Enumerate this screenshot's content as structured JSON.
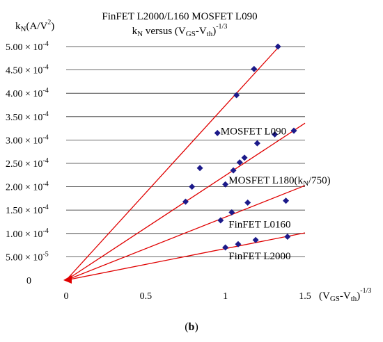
{
  "chart_data": {
    "type": "scatter",
    "title": "FinFET L2000/L160 MOSFET L090",
    "subtitle": {
      "base": "k",
      "base_sub": "N",
      "mid": " versus  (V",
      "mid_sub": "GS",
      "tail": "-V",
      "tail_sub": "th",
      "close": ")",
      "sup": "-1/3"
    },
    "ylabel": {
      "base": "k",
      "sub": "N",
      "rest": "(A/V",
      "sup": "2",
      "close": ")"
    },
    "xlabel": {
      "open": "(V",
      "sub1": "GS",
      "mid": "-V",
      "sub2": "th",
      "close": ")",
      "sup": "-1/3"
    },
    "xlim": [
      0,
      1.5
    ],
    "ylim": [
      0,
      0.0005
    ],
    "x_ticks": [
      {
        "value": 0,
        "label": "0"
      },
      {
        "value": 0.5,
        "label": "0.5"
      },
      {
        "value": 1,
        "label": "1"
      },
      {
        "value": 1.5,
        "label": "1.5"
      }
    ],
    "y_ticks": [
      {
        "value": 0,
        "label": "0"
      },
      {
        "value": 5e-05,
        "label": "5.00 × 10",
        "exp": "-5"
      },
      {
        "value": 0.0001,
        "label": "1.00 × 10",
        "exp": "-4"
      },
      {
        "value": 0.00015,
        "label": "1.50 × 10",
        "exp": "-4"
      },
      {
        "value": 0.0002,
        "label": "2.00 × 10",
        "exp": "-4"
      },
      {
        "value": 0.00025,
        "label": "2.50 × 10",
        "exp": "-4"
      },
      {
        "value": 0.0003,
        "label": "3.00 × 10",
        "exp": "-4"
      },
      {
        "value": 0.00035,
        "label": "3.50 × 10",
        "exp": "-4"
      },
      {
        "value": 0.0004,
        "label": "4.00 × 10",
        "exp": "-4"
      },
      {
        "value": 0.00045,
        "label": "4.50 × 10",
        "exp": "-4"
      },
      {
        "value": 0.0005,
        "label": "5.00 × 10",
        "exp": "-4"
      }
    ],
    "grid": true,
    "marker_color": "#1c1a8a",
    "line_color": "#e00000",
    "points": [
      {
        "x": 1.33,
        "y": 0.0005
      },
      {
        "x": 1.18,
        "y": 0.000452
      },
      {
        "x": 1.07,
        "y": 0.000396
      },
      {
        "x": 0.95,
        "y": 0.000315
      },
      {
        "x": 1.31,
        "y": 0.000312
      },
      {
        "x": 1.43,
        "y": 0.00032
      },
      {
        "x": 1.2,
        "y": 0.000293
      },
      {
        "x": 1.12,
        "y": 0.000262
      },
      {
        "x": 1.09,
        "y": 0.000252
      },
      {
        "x": 1.05,
        "y": 0.000235
      },
      {
        "x": 0.84,
        "y": 0.00024
      },
      {
        "x": 1.0,
        "y": 0.000205
      },
      {
        "x": 0.79,
        "y": 0.0002
      },
      {
        "x": 0.75,
        "y": 0.000168
      },
      {
        "x": 1.14,
        "y": 0.000166
      },
      {
        "x": 1.04,
        "y": 0.000145
      },
      {
        "x": 1.38,
        "y": 0.00017
      },
      {
        "x": 0.97,
        "y": 0.000128
      },
      {
        "x": 1.39,
        "y": 9.3e-05
      },
      {
        "x": 1.19,
        "y": 8.6e-05
      },
      {
        "x": 1.08,
        "y": 7.7e-05
      },
      {
        "x": 1.0,
        "y": 7e-05
      }
    ],
    "series_lines": [
      {
        "slope": 0.000374
      },
      {
        "slope": 0.000224
      },
      {
        "slope": 0.000135
      },
      {
        "slope": 6.75e-05
      }
    ],
    "annotations": [
      {
        "text": "MOSFET L090",
        "x": 0.97,
        "y": 0.000312
      },
      {
        "text": "MOSFET L180(k",
        "sub": "N",
        "tail": "/750)",
        "x": 1.02,
        "y": 0.000207
      },
      {
        "text": "FinFET L0160",
        "x": 1.02,
        "y": 0.000112
      },
      {
        "text": "FinFET L2000",
        "x": 1.02,
        "y": 4.5e-05
      }
    ]
  },
  "caption": {
    "open": "(",
    "letter": "b",
    "close": ")"
  }
}
